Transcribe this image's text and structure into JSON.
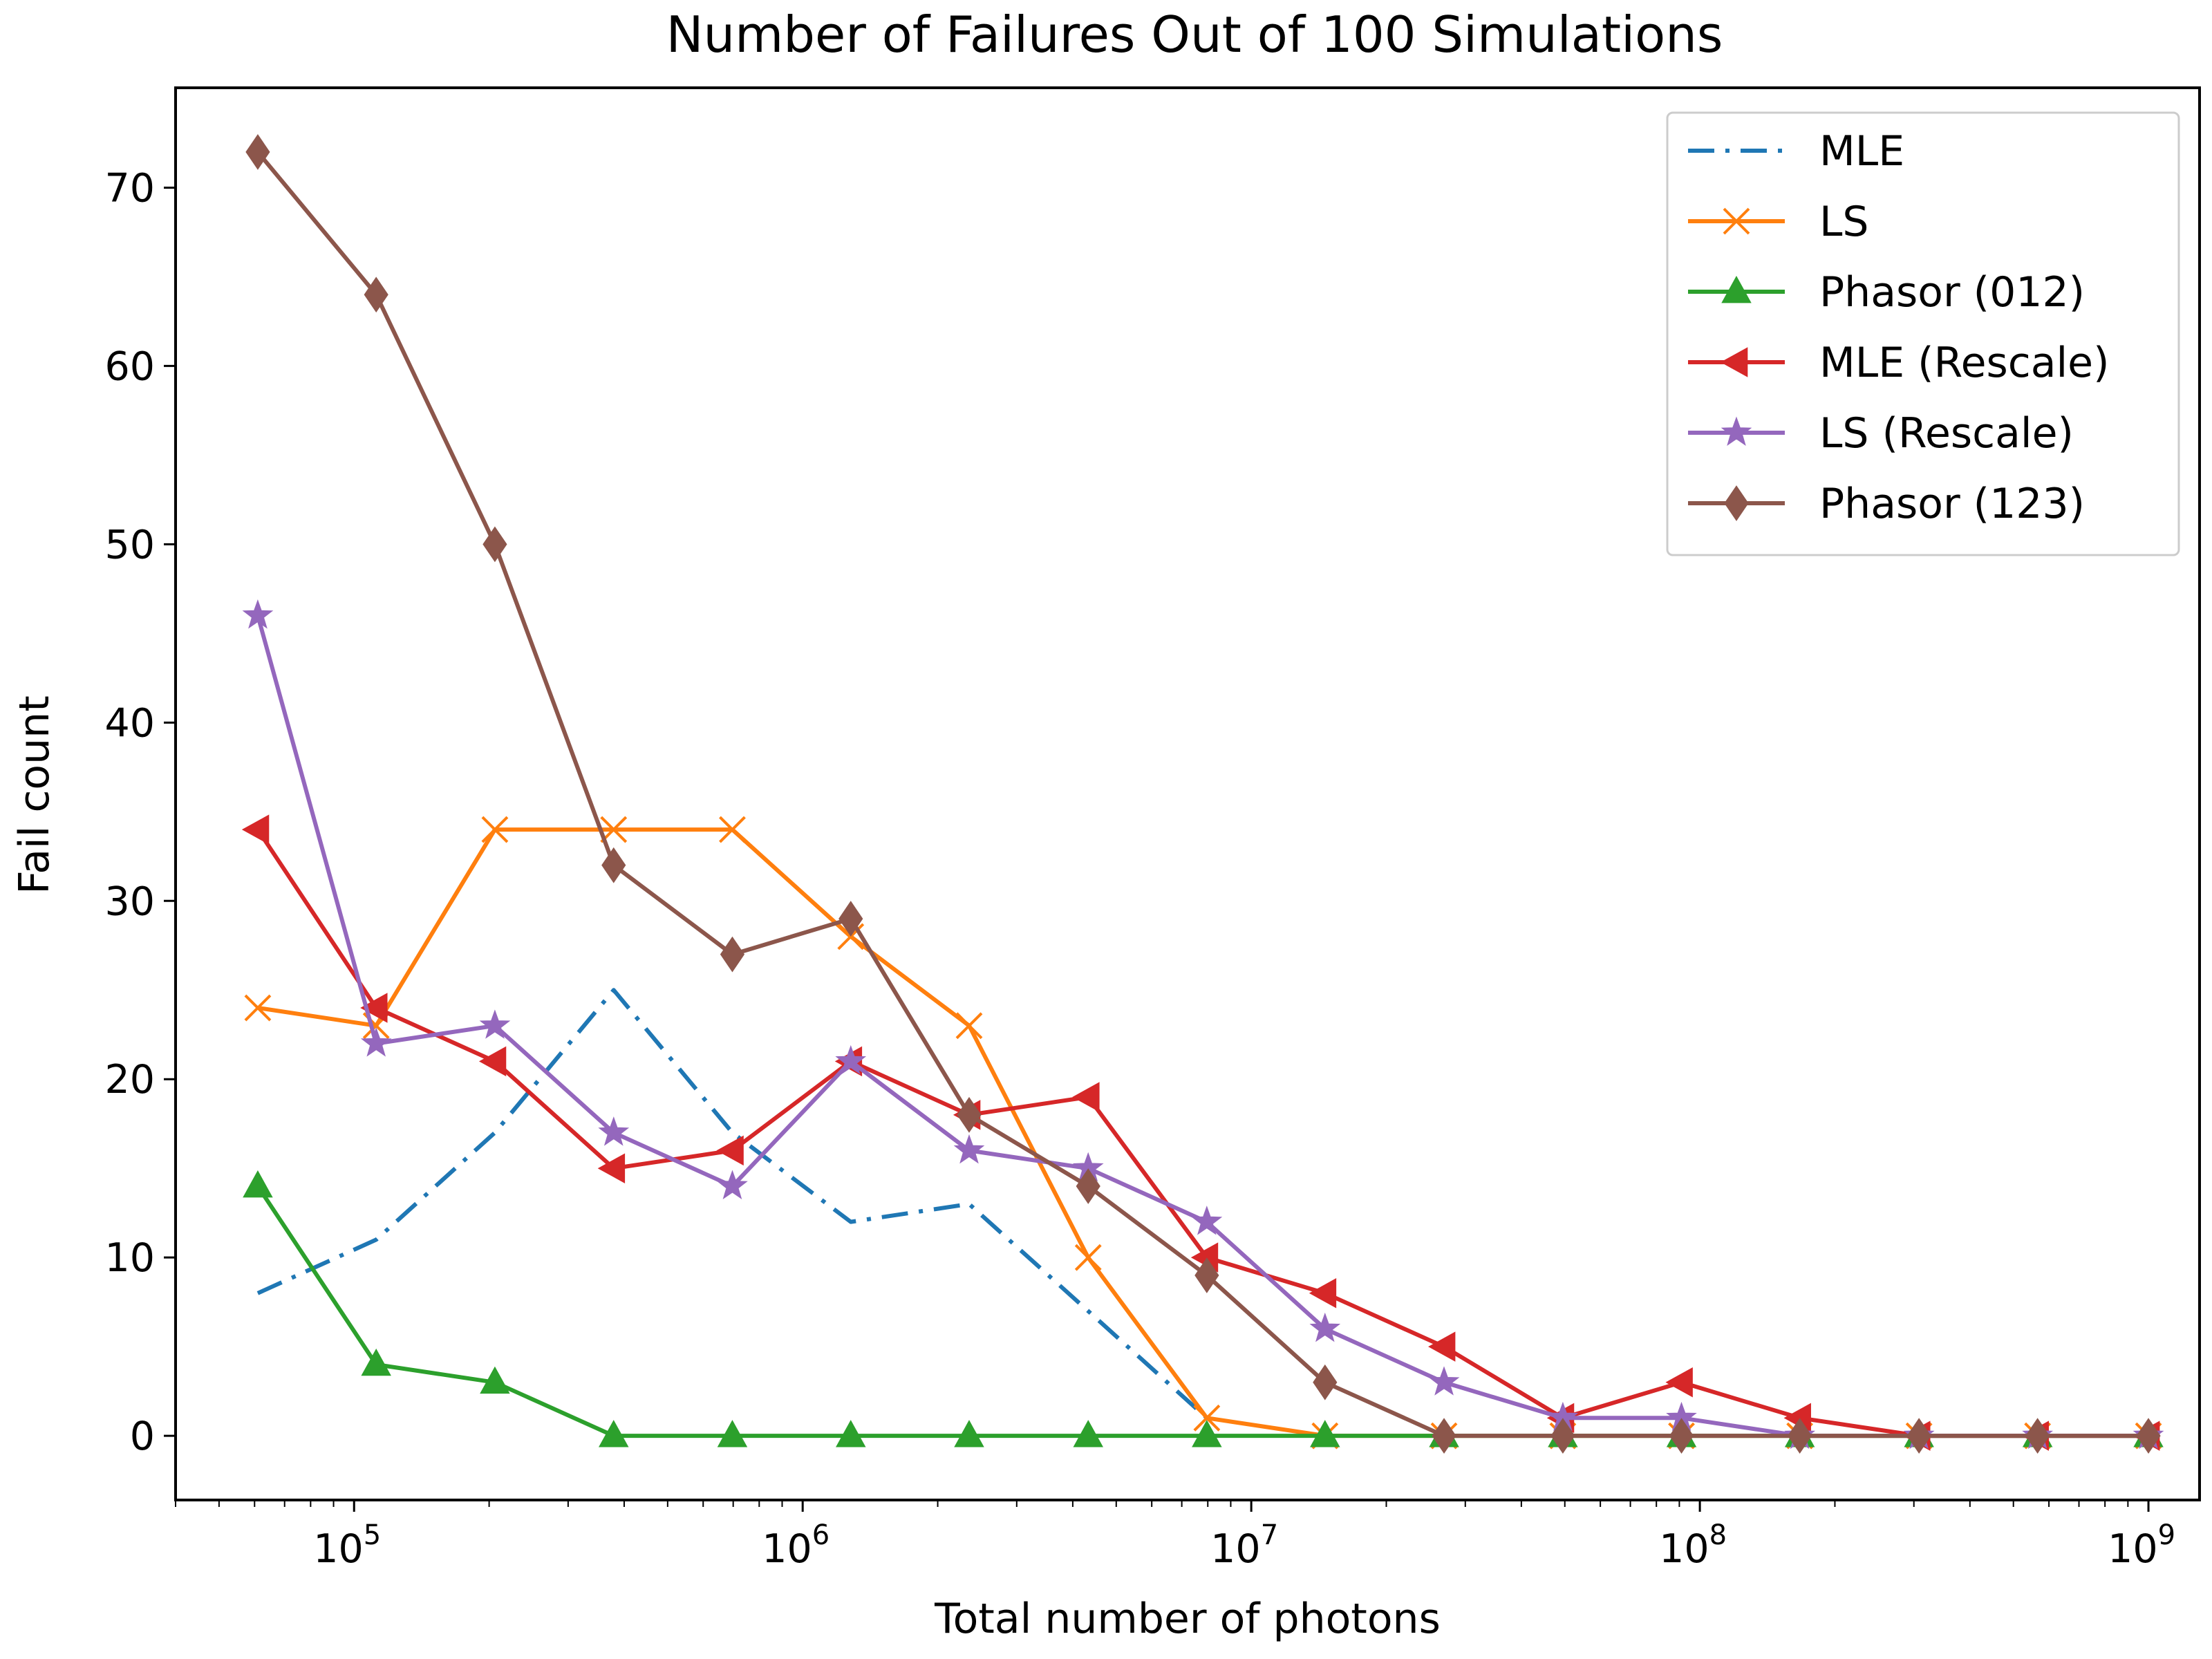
{
  "chart_data": {
    "type": "line",
    "title": "Number of Failures Out of 100 Simulations",
    "xlabel": "Total number of photons",
    "ylabel": "Fail count",
    "xscale": "log",
    "xlim": [
      40000,
      1300000000
    ],
    "ylim": [
      -3.6,
      75.6
    ],
    "xticks": [
      {
        "value": 100000,
        "base": "10",
        "exp": "5"
      },
      {
        "value": 1000000,
        "base": "10",
        "exp": "6"
      },
      {
        "value": 10000000,
        "base": "10",
        "exp": "7"
      },
      {
        "value": 100000000,
        "base": "10",
        "exp": "8"
      },
      {
        "value": 1000000000,
        "base": "10",
        "exp": "9"
      }
    ],
    "yticks": [
      0,
      10,
      20,
      30,
      40,
      50,
      60,
      70
    ],
    "grid": false,
    "legend_position": "top-right",
    "x": [
      61000,
      112000,
      206000,
      379000,
      697000,
      1280000,
      2350000,
      4330000,
      7960000,
      14600000,
      26900000,
      49500000,
      91000000,
      167000000,
      308000000,
      566000000,
      1000000000
    ],
    "series": [
      {
        "name": "MLE",
        "color": "#1f77b4",
        "linestyle": "dashdot",
        "marker": "none",
        "values": [
          8,
          11,
          17,
          25,
          17,
          12,
          13,
          7,
          1,
          null,
          null,
          null,
          null,
          null,
          null,
          null,
          null
        ]
      },
      {
        "name": "LS",
        "color": "#ff7f0e",
        "linestyle": "solid",
        "marker": "x",
        "values": [
          24,
          23,
          34,
          34,
          34,
          28,
          23,
          10,
          1,
          0,
          0,
          0,
          0,
          0,
          0,
          0,
          0
        ]
      },
      {
        "name": "Phasor (012)",
        "color": "#2ca02c",
        "linestyle": "solid",
        "marker": "triangle-up",
        "values": [
          14,
          4,
          3,
          0,
          0,
          0,
          0,
          0,
          0,
          0,
          0,
          0,
          0,
          0,
          0,
          0,
          0
        ]
      },
      {
        "name": "MLE (Rescale)",
        "color": "#d62728",
        "linestyle": "solid",
        "marker": "triangle-left",
        "values": [
          34,
          24,
          21,
          15,
          16,
          21,
          18,
          19,
          10,
          8,
          5,
          1,
          3,
          1,
          0,
          0,
          0
        ]
      },
      {
        "name": "LS (Rescale)",
        "color": "#9467bd",
        "linestyle": "solid",
        "marker": "star",
        "values": [
          46,
          22,
          23,
          17,
          14,
          21,
          16,
          15,
          12,
          6,
          3,
          1,
          1,
          0,
          0,
          0,
          0
        ]
      },
      {
        "name": "Phasor (123)",
        "color": "#8c564b",
        "linestyle": "solid",
        "marker": "diamond",
        "values": [
          72,
          64,
          50,
          32,
          27,
          29,
          18,
          14,
          9,
          3,
          0,
          0,
          0,
          0,
          0,
          0,
          0
        ]
      }
    ]
  }
}
